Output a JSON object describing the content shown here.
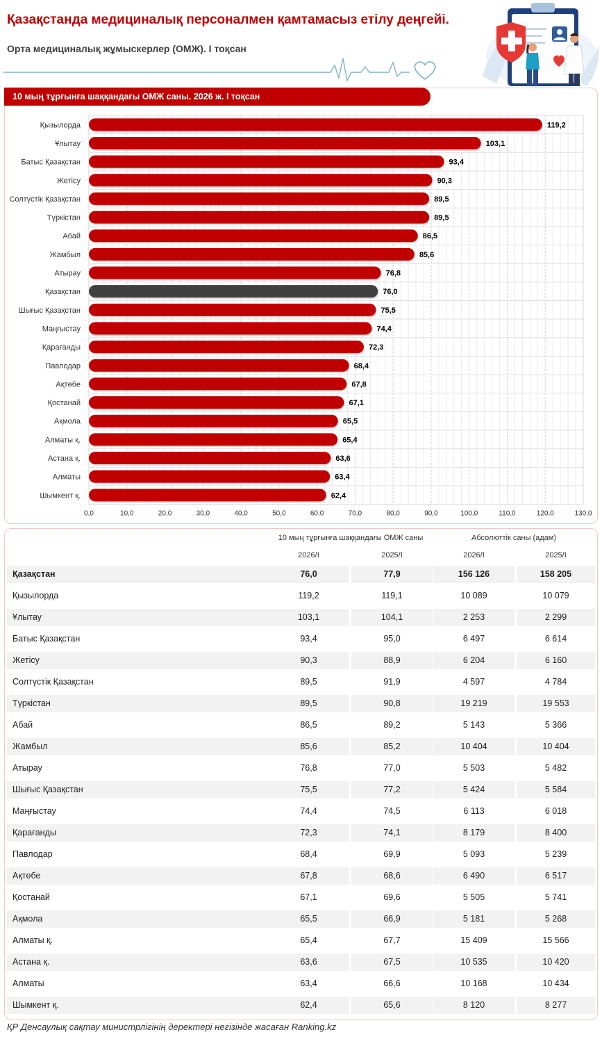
{
  "header": {
    "title": "Қазақстанда медициналық персоналмен қамтамасыз етілу деңгейі.",
    "subtitle": "Орта медициналық жұмыскерлер (ОМЖ). I тоқсан"
  },
  "colors": {
    "accent": "#c00000",
    "highlight": "#404040",
    "grid": "#d9d9d9"
  },
  "icons": [
    "heartbeat-line-icon",
    "heart-outline-icon",
    "medical-clipboard-icon",
    "doctor-icon",
    "patient-icon",
    "heart-icon",
    "swiss-cross-shield-icon"
  ],
  "chart_data": {
    "type": "bar",
    "orientation": "horizontal",
    "title": "10 мың тұрғынға шаққандағы ОМЖ саны. 2026 ж. I тоқсан",
    "categories": [
      "Қызылорда",
      "Ұлытау",
      "Батыс Қазақстан",
      "Жетісу",
      "Солтүстік Қазақстан",
      "Түркістан",
      "Абай",
      "Жамбыл",
      "Атырау",
      "Қазақстан",
      "Шығыс Қазақстан",
      "Маңғыстау",
      "Қарағанды",
      "Павлодар",
      "Ақтөбе",
      "Қостанай",
      "Ақмола",
      "Алматы қ.",
      "Астана қ.",
      "Алматы",
      "Шымкент қ."
    ],
    "values": [
      119.2,
      103.1,
      93.4,
      90.3,
      89.5,
      89.5,
      86.5,
      85.6,
      76.8,
      76.0,
      75.5,
      74.4,
      72.3,
      68.4,
      67.8,
      67.1,
      65.5,
      65.4,
      63.6,
      63.4,
      62.4
    ],
    "value_labels": [
      "119,2",
      "103,1",
      "93,4",
      "90,3",
      "89,5",
      "89,5",
      "86,5",
      "85,6",
      "76,8",
      "76,0",
      "75,5",
      "74,4",
      "72,3",
      "68,4",
      "67,8",
      "67,1",
      "65,5",
      "65,4",
      "63,6",
      "63,4",
      "62,4"
    ],
    "highlight_category": "Қазақстан",
    "xlim": [
      0,
      130
    ],
    "xticks": [
      "0,0",
      "10,0",
      "20,0",
      "30,0",
      "40,0",
      "50,0",
      "60,0",
      "70,0",
      "80,0",
      "90,0",
      "100,0",
      "110,0",
      "120,0",
      "130,0"
    ],
    "grid": true
  },
  "table": {
    "group_headers": [
      "10 мың тұрғынға шаққандағы ОМЖ саны",
      "Абсолюттік саны (адам)"
    ],
    "column_headers": [
      "2026/I",
      "2025/I",
      "2026/I",
      "2025/I"
    ],
    "rows": [
      {
        "name": "Қазақстан",
        "v": [
          "76,0",
          "77,9",
          "156 126",
          "158 205"
        ]
      },
      {
        "name": "Қызылорда",
        "v": [
          "119,2",
          "119,1",
          "10 089",
          "10 079"
        ]
      },
      {
        "name": "Ұлытау",
        "v": [
          "103,1",
          "104,1",
          "2 253",
          "2 299"
        ]
      },
      {
        "name": "Батыс Қазақстан",
        "v": [
          "93,4",
          "95,0",
          "6 497",
          "6 614"
        ]
      },
      {
        "name": "Жетісу",
        "v": [
          "90,3",
          "88,9",
          "6 204",
          "6 160"
        ]
      },
      {
        "name": "Солтүстік Қазақстан",
        "v": [
          "89,5",
          "91,9",
          "4 597",
          "4 784"
        ]
      },
      {
        "name": "Түркістан",
        "v": [
          "89,5",
          "90,8",
          "19 219",
          "19 553"
        ]
      },
      {
        "name": "Абай",
        "v": [
          "86,5",
          "89,2",
          "5 143",
          "5 366"
        ]
      },
      {
        "name": "Жамбыл",
        "v": [
          "85,6",
          "85,2",
          "10 404",
          "10 404"
        ]
      },
      {
        "name": "Атырау",
        "v": [
          "76,8",
          "77,0",
          "5 503",
          "5 482"
        ]
      },
      {
        "name": "Шығыс Қазақстан",
        "v": [
          "75,5",
          "77,2",
          "5 424",
          "5 584"
        ]
      },
      {
        "name": "Маңғыстау",
        "v": [
          "74,4",
          "74,5",
          "6 113",
          "6 018"
        ]
      },
      {
        "name": "Қарағанды",
        "v": [
          "72,3",
          "74,1",
          "8 179",
          "8 400"
        ]
      },
      {
        "name": "Павлодар",
        "v": [
          "68,4",
          "69,9",
          "5 093",
          "5 239"
        ]
      },
      {
        "name": "Ақтөбе",
        "v": [
          "67,8",
          "68,6",
          "6 490",
          "6 517"
        ]
      },
      {
        "name": "Қостанай",
        "v": [
          "67,1",
          "69,6",
          "5 505",
          "5 741"
        ]
      },
      {
        "name": "Ақмола",
        "v": [
          "65,5",
          "66,9",
          "5 181",
          "5 268"
        ]
      },
      {
        "name": "Алматы қ.",
        "v": [
          "65,4",
          "67,7",
          "15 409",
          "15 566"
        ]
      },
      {
        "name": "Астана қ.",
        "v": [
          "63,6",
          "67,5",
          "10 535",
          "10 420"
        ]
      },
      {
        "name": "Алматы",
        "v": [
          "63,4",
          "66,6",
          "10 168",
          "10 434"
        ]
      },
      {
        "name": "Шымкент қ.",
        "v": [
          "62,4",
          "65,6",
          "8 120",
          "8 277"
        ]
      }
    ]
  },
  "footer": "ҚР Денсаулық сақтау министрлігінің деректері негізінде жасаған Ranking.kz"
}
